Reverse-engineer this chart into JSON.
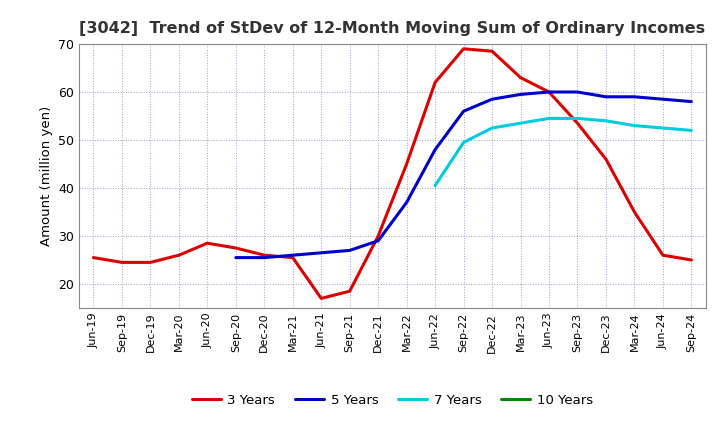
{
  "title": "[3042]  Trend of StDev of 12-Month Moving Sum of Ordinary Incomes",
  "ylabel": "Amount (million yen)",
  "ylim": [
    15,
    70
  ],
  "yticks": [
    20,
    30,
    40,
    50,
    60,
    70
  ],
  "background_color": "#ffffff",
  "x_labels": [
    "Jun-19",
    "Sep-19",
    "Dec-19",
    "Mar-20",
    "Jun-20",
    "Sep-20",
    "Dec-20",
    "Mar-21",
    "Jun-21",
    "Sep-21",
    "Dec-21",
    "Mar-22",
    "Jun-22",
    "Sep-22",
    "Dec-22",
    "Mar-23",
    "Jun-23",
    "Sep-23",
    "Dec-23",
    "Mar-24",
    "Jun-24",
    "Sep-24"
  ],
  "series": {
    "3 Years": {
      "color": "#dd0000",
      "data": [
        25.5,
        24.5,
        24.5,
        26.0,
        28.5,
        27.5,
        26.0,
        25.5,
        17.0,
        18.5,
        30.0,
        45.0,
        62.0,
        69.0,
        68.5,
        63.0,
        60.0,
        53.5,
        46.0,
        35.0,
        26.0,
        25.0
      ]
    },
    "5 Years": {
      "color": "#0000cc",
      "data": [
        null,
        null,
        null,
        null,
        null,
        25.5,
        25.5,
        26.0,
        26.5,
        27.0,
        29.0,
        37.0,
        48.0,
        56.0,
        58.5,
        59.5,
        60.0,
        60.0,
        59.0,
        59.0,
        58.5,
        58.0
      ]
    },
    "7 Years": {
      "color": "#00ccdd",
      "data": [
        null,
        null,
        null,
        null,
        null,
        null,
        null,
        null,
        null,
        null,
        null,
        null,
        40.5,
        49.5,
        52.5,
        53.5,
        54.5,
        54.5,
        54.0,
        53.0,
        52.5,
        52.0
      ]
    },
    "10 Years": {
      "color": "#008800",
      "data": [
        null,
        null,
        null,
        null,
        null,
        null,
        null,
        null,
        null,
        null,
        null,
        null,
        null,
        null,
        null,
        null,
        null,
        null,
        null,
        null,
        null,
        null
      ]
    }
  },
  "legend_labels": [
    "3 Years",
    "5 Years",
    "7 Years",
    "10 Years"
  ]
}
